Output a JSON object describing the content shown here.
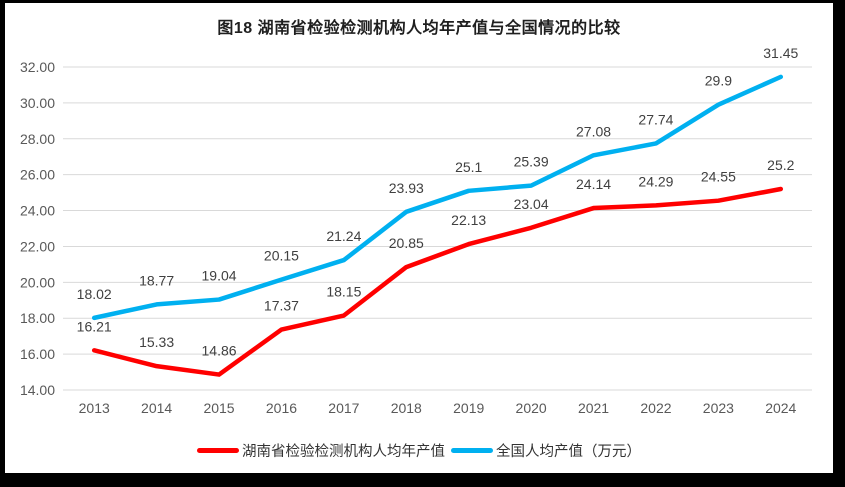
{
  "title": "图18 湖南省检验检测机构人均年产值与全国情况的比较",
  "chart_data": {
    "type": "line",
    "title": "图18 湖南省检验检测机构人均年产值与全国情况的比较",
    "categories": [
      "2013",
      "2014",
      "2015",
      "2016",
      "2017",
      "2018",
      "2019",
      "2020",
      "2021",
      "2022",
      "2023",
      "2024"
    ],
    "series": [
      {
        "name": "湖南省检验检测机构人均年产值",
        "color": "#FF0000",
        "values": [
          16.21,
          15.33,
          14.86,
          17.37,
          18.15,
          20.85,
          22.13,
          23.04,
          24.14,
          24.29,
          24.55,
          25.2
        ]
      },
      {
        "name": "全国人均产值（万元）",
        "color": "#00B0F0",
        "values": [
          18.02,
          18.77,
          19.04,
          20.15,
          21.24,
          23.93,
          25.1,
          25.39,
          27.08,
          27.74,
          29.9,
          31.45
        ]
      }
    ],
    "xlabel": "",
    "ylabel": "",
    "ylim": [
      14,
      32
    ],
    "y_tick_step": 2,
    "y_tick_labels": [
      "14.00",
      "16.00",
      "18.00",
      "20.00",
      "22.00",
      "24.00",
      "26.00",
      "28.00",
      "30.00",
      "32.00"
    ],
    "grid": "horizontal",
    "gridline_color": "#D9D9D9",
    "axis_label_color": "#595959",
    "data_label_color": "#404040",
    "data_labels": "above",
    "legend_position": "bottom",
    "line_width": 4.5,
    "frame_color": "#000000"
  }
}
